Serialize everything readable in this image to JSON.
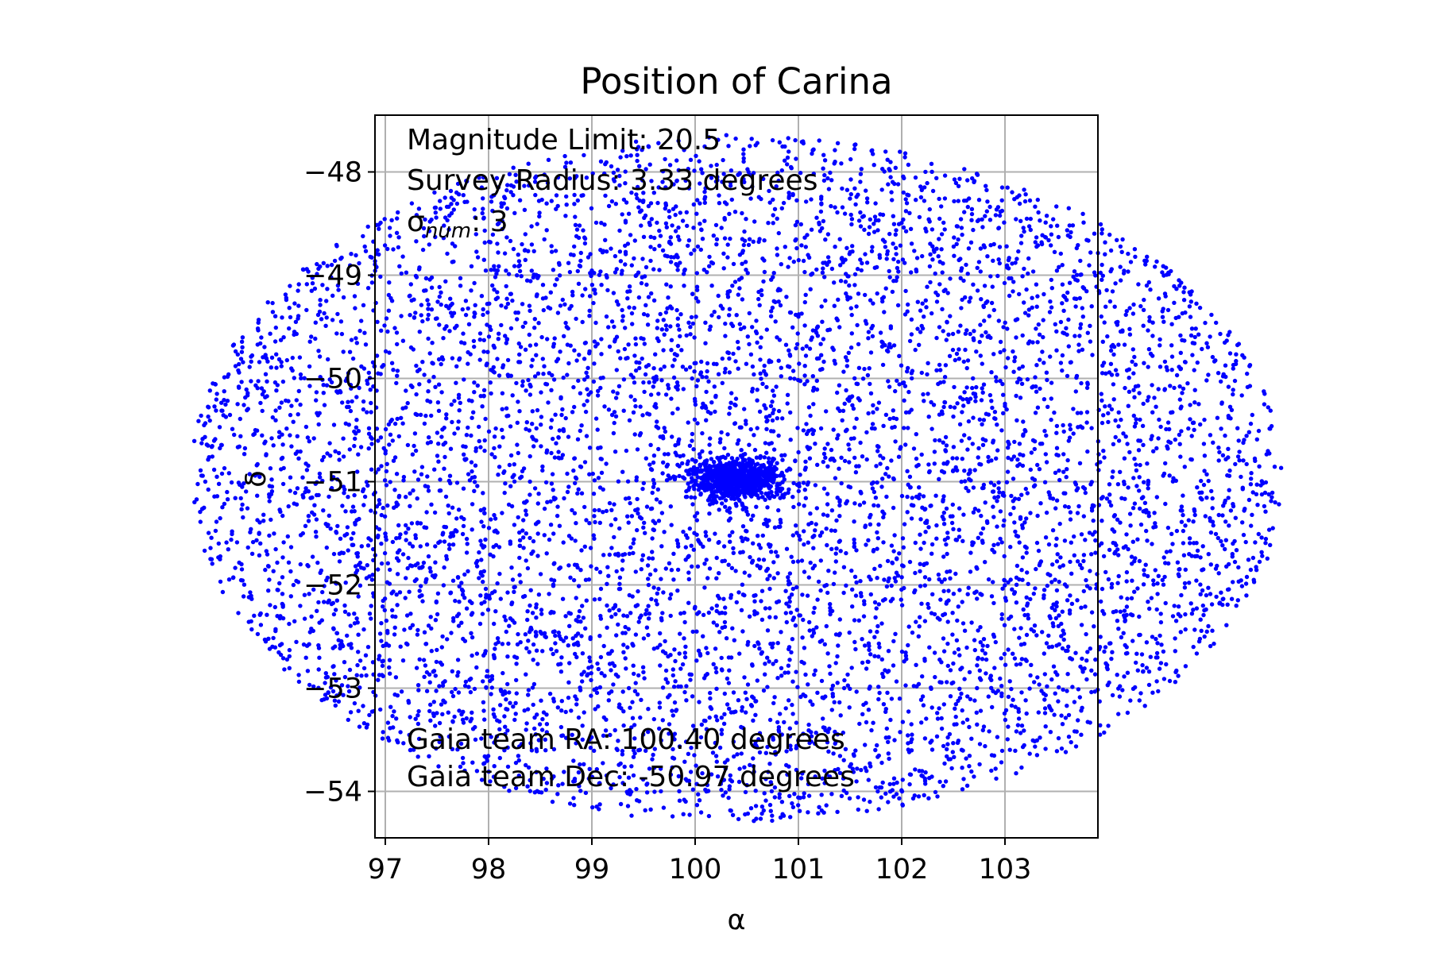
{
  "chart_data": {
    "type": "scatter",
    "title": "Position of Carina",
    "xlabel": "α",
    "ylabel": "δ",
    "xlim": [
      96.9,
      103.9
    ],
    "ylim": [
      -54.45,
      -47.45
    ],
    "xticks": [
      97,
      98,
      99,
      100,
      101,
      102,
      103
    ],
    "xtick_labels": [
      "97",
      "98",
      "99",
      "100",
      "101",
      "102",
      "103"
    ],
    "yticks": [
      -48,
      -49,
      -50,
      -51,
      -52,
      -53,
      -54
    ],
    "ytick_labels": [
      "−48",
      "−49",
      "−50",
      "−51",
      "−52",
      "−53",
      "−54"
    ],
    "grid": true,
    "marker_color": "#0000ff",
    "field": {
      "center_ra": 100.4,
      "center_dec": -50.97,
      "radius_deg": 3.33,
      "num_points": 7000
    },
    "cluster": {
      "center_ra": 100.4,
      "center_dec": -50.97,
      "num_points": 900
    },
    "annotations": {
      "mag_limit": "Magnitude Limit: 20.5",
      "survey_radius": "Survey Radius: 3.33 degrees",
      "sigma_prefix": "σ",
      "sigma_sub": "num",
      "sigma_suffix": ": 3",
      "gaia_ra": "Gaia team RA: 100.40 degrees",
      "gaia_dec": "Gaia team Dec: -50.97 degrees"
    }
  }
}
